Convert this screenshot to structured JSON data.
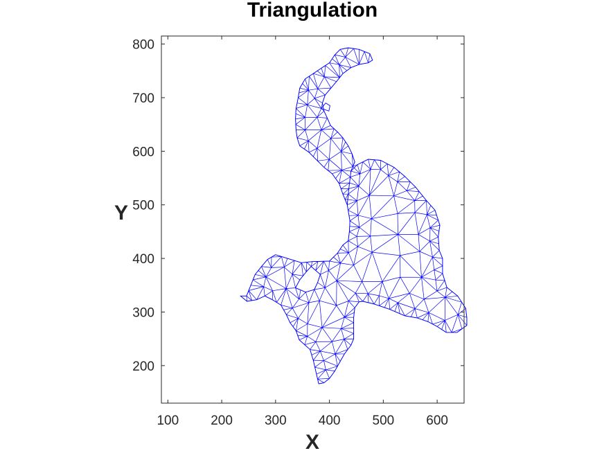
{
  "chart_data": {
    "type": "mesh",
    "title": "Triangulation",
    "xlabel": "X",
    "ylabel": "Y",
    "xlim": [
      88,
      650
    ],
    "ylim": [
      130,
      815
    ],
    "xticks": [
      100,
      200,
      300,
      400,
      500,
      600
    ],
    "yticks": [
      200,
      300,
      400,
      500,
      600,
      700,
      800
    ],
    "grid": false,
    "mesh_color": "#0000ff",
    "axis_color": "#262626",
    "boundary": [
      [
        246,
        330
      ],
      [
        262,
        370
      ],
      [
        274,
        385
      ],
      [
        285,
        398
      ],
      [
        300,
        407
      ],
      [
        322,
        400
      ],
      [
        348,
        392
      ],
      [
        368,
        394
      ],
      [
        400,
        395
      ],
      [
        415,
        410
      ],
      [
        425,
        425
      ],
      [
        435,
        433
      ],
      [
        437,
        450
      ],
      [
        438,
        470
      ],
      [
        433,
        500
      ],
      [
        436,
        530
      ],
      [
        440,
        563
      ],
      [
        452,
        575
      ],
      [
        472,
        585
      ],
      [
        495,
        583
      ],
      [
        520,
        570
      ],
      [
        540,
        553
      ],
      [
        560,
        533
      ],
      [
        580,
        508
      ],
      [
        596,
        490
      ],
      [
        605,
        462
      ],
      [
        602,
        440
      ],
      [
        604,
        415
      ],
      [
        610,
        400
      ],
      [
        610,
        372
      ],
      [
        618,
        346
      ],
      [
        638,
        330
      ],
      [
        653,
        307
      ],
      [
        655,
        290
      ],
      [
        655,
        275
      ],
      [
        637,
        262
      ],
      [
        617,
        262
      ],
      [
        600,
        273
      ],
      [
        583,
        282
      ],
      [
        563,
        289
      ],
      [
        540,
        293
      ],
      [
        512,
        305
      ],
      [
        483,
        315
      ],
      [
        462,
        320
      ],
      [
        455,
        319
      ],
      [
        447,
        308
      ],
      [
        445,
        290
      ],
      [
        445,
        270
      ],
      [
        445,
        250
      ],
      [
        440,
        238
      ],
      [
        428,
        222
      ],
      [
        420,
        208
      ],
      [
        410,
        190
      ],
      [
        400,
        176
      ],
      [
        390,
        168
      ],
      [
        380,
        166
      ],
      [
        376,
        184
      ],
      [
        370,
        210
      ],
      [
        364,
        230
      ],
      [
        344,
        248
      ],
      [
        338,
        265
      ],
      [
        327,
        280
      ],
      [
        320,
        295
      ],
      [
        310,
        313
      ],
      [
        294,
        323
      ],
      [
        280,
        330
      ],
      [
        265,
        323
      ],
      [
        247,
        320
      ],
      [
        235,
        330
      ],
      [
        246,
        330
      ]
    ],
    "hole": [
      [
        337,
        345
      ],
      [
        345,
        360
      ],
      [
        357,
        375
      ],
      [
        366,
        385
      ],
      [
        383,
        370
      ],
      [
        378,
        355
      ],
      [
        372,
        342
      ],
      [
        356,
        337
      ],
      [
        337,
        345
      ]
    ],
    "arm": [
      [
        433,
        500
      ],
      [
        425,
        520
      ],
      [
        418,
        540
      ],
      [
        405,
        558
      ],
      [
        390,
        570
      ],
      [
        378,
        582
      ],
      [
        362,
        598
      ],
      [
        345,
        610
      ],
      [
        340,
        625
      ],
      [
        338,
        640
      ],
      [
        337,
        660
      ],
      [
        338,
        680
      ],
      [
        342,
        700
      ],
      [
        345,
        718
      ],
      [
        355,
        735
      ],
      [
        370,
        745
      ],
      [
        385,
        755
      ],
      [
        400,
        765
      ],
      [
        410,
        780
      ],
      [
        420,
        790
      ],
      [
        435,
        793
      ],
      [
        455,
        790
      ],
      [
        475,
        782
      ],
      [
        480,
        770
      ],
      [
        472,
        765
      ],
      [
        455,
        762
      ],
      [
        440,
        756
      ],
      [
        425,
        745
      ],
      [
        413,
        730
      ],
      [
        403,
        718
      ],
      [
        392,
        705
      ],
      [
        387,
        690
      ],
      [
        390,
        675
      ],
      [
        396,
        662
      ],
      [
        402,
        648
      ],
      [
        415,
        636
      ],
      [
        425,
        625
      ],
      [
        435,
        610
      ],
      [
        442,
        595
      ],
      [
        447,
        580
      ],
      [
        440,
        563
      ]
    ],
    "arm_notch": [
      [
        385,
        680
      ],
      [
        399,
        675
      ],
      [
        401,
        685
      ],
      [
        393,
        690
      ],
      [
        385,
        680
      ]
    ]
  }
}
